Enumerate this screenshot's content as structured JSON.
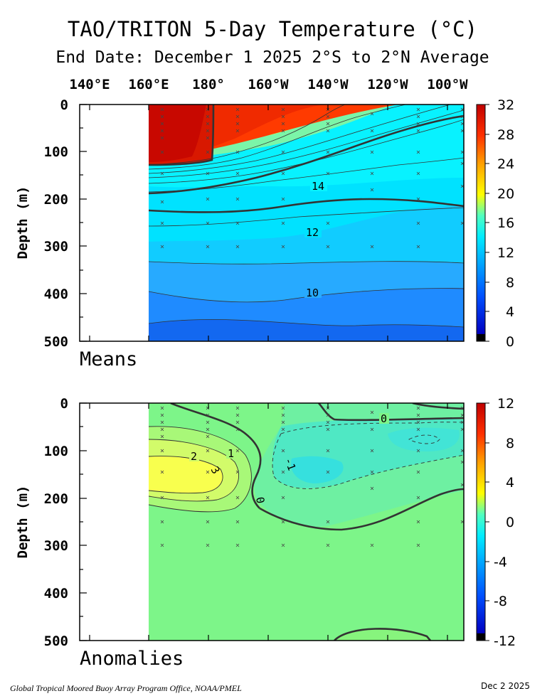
{
  "title": "TAO/TRITON 5-Day Temperature (°C)",
  "subtitle": "End Date: December 1 2025  2°S to 2°N Average",
  "lon_labels": [
    "140°E",
    "160°E",
    "180°",
    "160°W",
    "140°W",
    "120°W",
    "100°W"
  ],
  "footer_left": "Global Tropical Moored Buoy Array Program Office, NOAA/PMEL",
  "footer_right": "Dec  2 2025",
  "chart_data": [
    {
      "type": "heatmap",
      "panel_label": "Means",
      "ylabel": "Depth (m)",
      "x_ticks": [
        "140°E",
        "160°E",
        "180°",
        "160°W",
        "140°W",
        "120°W",
        "100°W"
      ],
      "y_ticks": [
        0,
        100,
        200,
        300,
        400,
        500
      ],
      "ylim": [
        0,
        500
      ],
      "colorbar_ticks": [
        32,
        28,
        24,
        20,
        16,
        12,
        8,
        4,
        0
      ],
      "colorbar_range": [
        0,
        32
      ],
      "contour_labels": [
        "14",
        "12",
        "10"
      ],
      "fields": [
        {
          "lon": "160°E",
          "isotherm_depths": {
            "28": 120,
            "20": 190,
            "14": 225,
            "12": 295,
            "10": 420
          }
        },
        {
          "lon": "140°W",
          "isotherm_depths": {
            "28": 10,
            "20": 110,
            "14": 150,
            "12": 270,
            "10": 390
          }
        },
        {
          "lon": "100°W",
          "isotherm_depths": {
            "26": 5,
            "20": 30,
            "14": 65,
            "12": 285,
            "10": 385
          }
        }
      ],
      "colors": {
        "warm": "#cc1100",
        "mid": "#ffee00",
        "cool": "#00eeff",
        "deep": "#1f8bff"
      }
    },
    {
      "type": "heatmap",
      "panel_label": "Anomalies",
      "ylabel": "Depth (m)",
      "x_ticks": [
        "140°E",
        "160°E",
        "180°",
        "160°W",
        "140°W",
        "120°W",
        "100°W"
      ],
      "y_ticks": [
        0,
        100,
        200,
        300,
        400,
        500
      ],
      "ylim": [
        0,
        500
      ],
      "colorbar_ticks": [
        12,
        8,
        4,
        0,
        -4,
        -8,
        -12
      ],
      "colorbar_range": [
        -12,
        12
      ],
      "contour_labels": [
        "2",
        "1",
        "3",
        "0",
        "-1",
        "0"
      ],
      "features": [
        {
          "name": "warm anomaly",
          "lon": "175°E",
          "depth": 150,
          "max_value": 3
        },
        {
          "name": "cool anomaly",
          "lon": "140°W",
          "depth": 100,
          "min_value": -1
        }
      ],
      "colors": {
        "background": "#7df589",
        "warm": "#f8ff66",
        "cool": "#3fe9d8"
      }
    }
  ]
}
